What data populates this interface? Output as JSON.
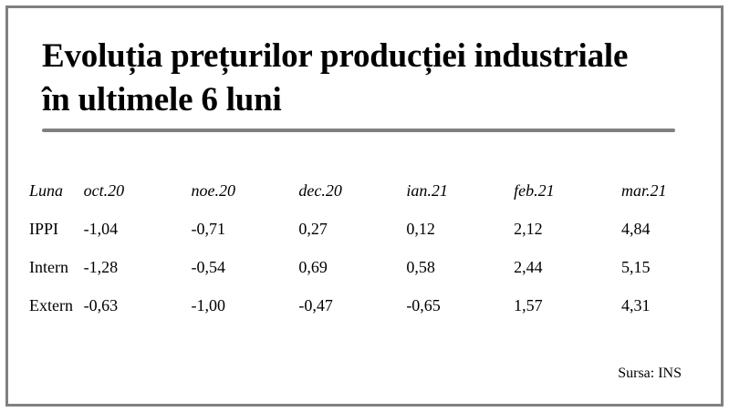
{
  "title_lines": [
    "Evoluția prețurilor producției industriale",
    "în ultimele 6 luni"
  ],
  "source": "Sursa: INS",
  "chart_data": {
    "type": "table",
    "title": "Evoluția prețurilor producției industriale în ultimele 6 luni",
    "header": [
      "Luna",
      "oct.20",
      "noe.20",
      "dec.20",
      "ian.21",
      "feb.21",
      "mar.21"
    ],
    "rows": [
      {
        "label": "IPPI",
        "values": [
          "-1,04",
          "-0,71",
          "0,27",
          "0,12",
          "2,12",
          "4,84"
        ]
      },
      {
        "label": "Intern",
        "values": [
          "-1,28",
          "-0,54",
          "0,69",
          "0,58",
          "2,44",
          "5,15"
        ]
      },
      {
        "label": "Extern",
        "values": [
          "-0,63",
          "-1,00",
          "-0,47",
          "-0,65",
          "1,57",
          "4,31"
        ]
      }
    ]
  }
}
